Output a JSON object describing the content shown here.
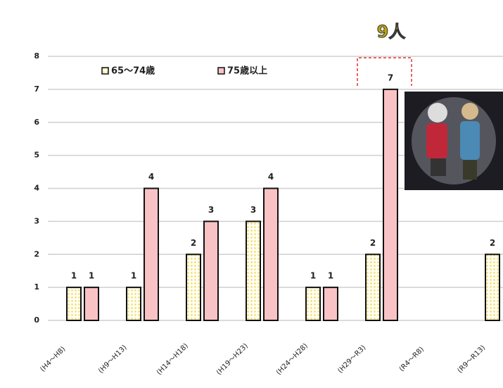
{
  "chart_data": {
    "type": "bar",
    "annotation": "9人",
    "categories": [
      "(H4〜H8)",
      "(H9〜H13)",
      "(H14〜H18)",
      "(H19〜H23)",
      "(H24〜H28)",
      "(H29〜R3)",
      "(R4〜R8)",
      "(R9〜R13)"
    ],
    "series": [
      {
        "name": "65〜74歳",
        "color": "#f2d65a",
        "values": [
          1,
          1,
          2,
          3,
          1,
          2,
          null,
          2
        ]
      },
      {
        "name": "75歳以上",
        "color": "#f9c3c6",
        "values": [
          1,
          4,
          3,
          4,
          1,
          7,
          null,
          null
        ]
      }
    ],
    "ylim": [
      0,
      8
    ],
    "yticks": [
      0,
      1,
      2,
      3,
      4,
      5,
      6,
      7,
      8
    ],
    "grid": true
  }
}
